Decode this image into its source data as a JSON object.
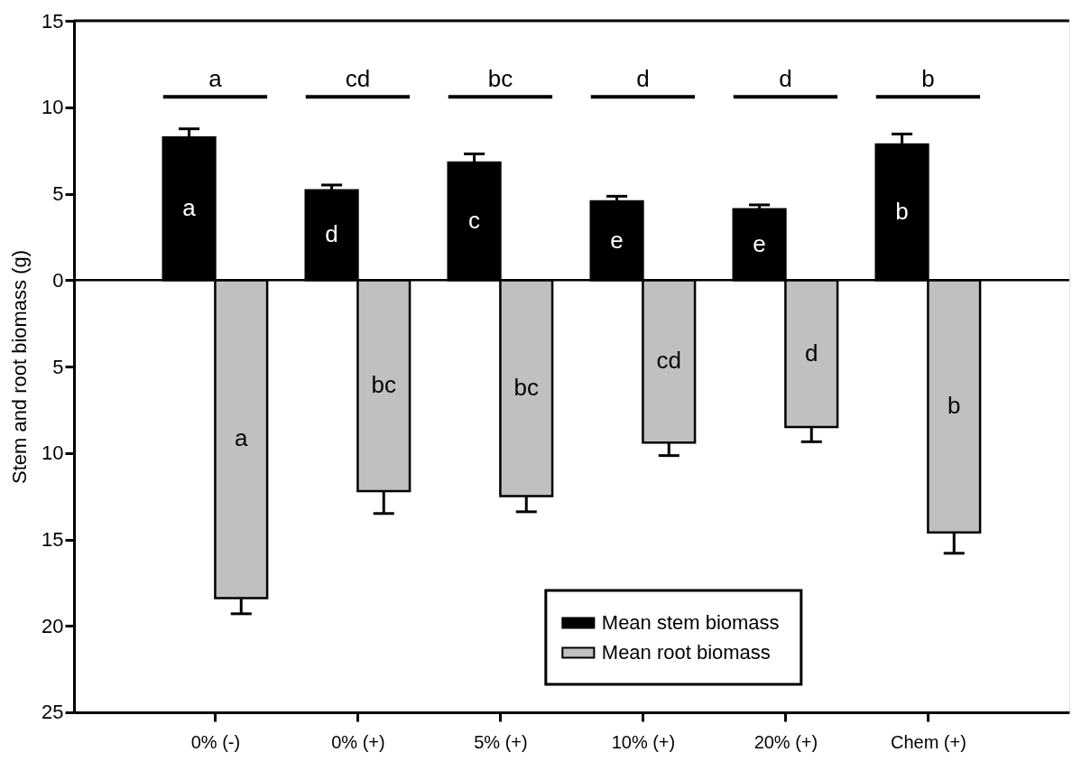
{
  "chart_data": {
    "type": "bar",
    "ylabel": "Stem and root biomass (g)",
    "categories": [
      "0% (-)",
      "0% (+)",
      "5% (+)",
      "10% (+)",
      "20% (+)",
      "Chem (+)"
    ],
    "series": [
      {
        "name": "Mean stem biomass",
        "color": "#000000",
        "values": [
          8.25,
          5.2,
          6.8,
          4.55,
          4.1,
          7.85
        ],
        "errors": [
          [
            8.25,
            8.75
          ],
          [
            5.2,
            5.5
          ],
          [
            6.8,
            7.3
          ],
          [
            4.55,
            4.85
          ],
          [
            4.1,
            4.35
          ],
          [
            7.85,
            8.45
          ]
        ],
        "value_labels": [
          "a",
          "d",
          "c",
          "e",
          "e",
          "b"
        ]
      },
      {
        "name": "Mean root biomass",
        "color": "#c0c0c0",
        "values": [
          -18.4,
          -12.2,
          -12.5,
          -9.4,
          -8.5,
          -14.6
        ],
        "errors": [
          [
            -19.3,
            -18.4
          ],
          [
            -13.5,
            -12.2
          ],
          [
            -13.4,
            -12.5
          ],
          [
            -10.15,
            -9.4
          ],
          [
            -9.35,
            -8.5
          ],
          [
            -15.8,
            -14.6
          ]
        ],
        "value_labels": [
          "a",
          "bc",
          "bc",
          "cd",
          "d",
          "b"
        ]
      }
    ],
    "annotations": [
      "a",
      "cd",
      "bc",
      "d",
      "d",
      "b"
    ],
    "ref_lines": [
      {
        "axis": "y",
        "value": 0,
        "color": "#000000"
      }
    ],
    "ylim": [
      -25,
      15
    ],
    "yticks": [
      {
        "value": -25,
        "label": "25"
      },
      {
        "value": -20,
        "label": "20"
      },
      {
        "value": -15,
        "label": "15"
      },
      {
        "value": -10,
        "label": "10"
      },
      {
        "value": -5,
        "label": "5"
      },
      0,
      5,
      10,
      15
    ],
    "grid": false,
    "legend": "bottom right"
  }
}
